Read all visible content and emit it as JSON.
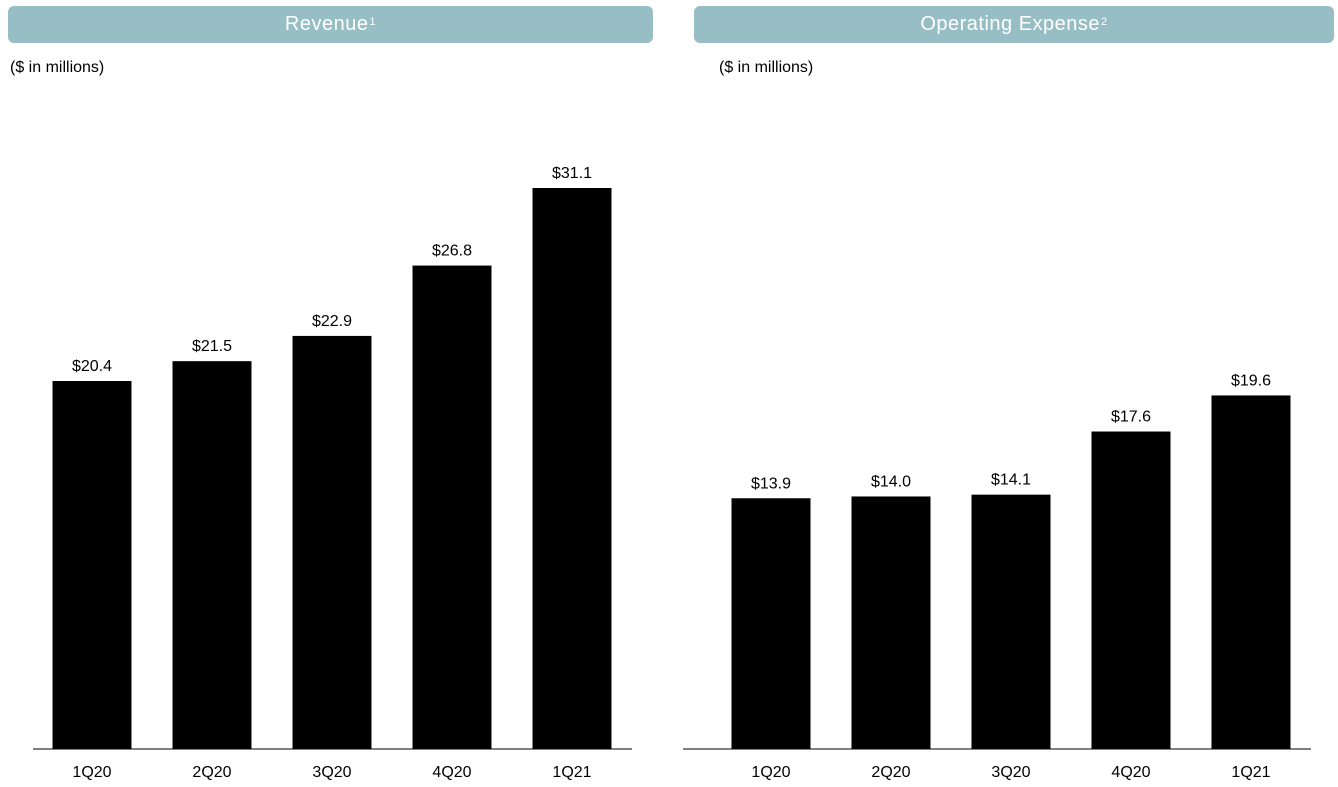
{
  "chart_data": [
    {
      "type": "bar",
      "title": "Revenue",
      "title_superscript": "1",
      "subtitle": "($ in millions)",
      "categories": [
        "1Q20",
        "2Q20",
        "3Q20",
        "4Q20",
        "1Q21"
      ],
      "values": [
        20.4,
        21.5,
        22.9,
        26.8,
        31.1
      ],
      "value_labels": [
        "$20.4",
        "$21.5",
        "$22.9",
        "$26.8",
        "$31.1"
      ],
      "ylim": [
        0,
        31.1
      ],
      "grid": false,
      "bar_color": "#000000",
      "header_color": "#97bec4"
    },
    {
      "type": "bar",
      "title": "Operating Expense",
      "title_superscript": "2",
      "subtitle": "($ in millions)",
      "categories": [
        "1Q20",
        "2Q20",
        "3Q20",
        "4Q20",
        "1Q21"
      ],
      "values": [
        13.9,
        14.0,
        14.1,
        17.6,
        19.6
      ],
      "value_labels": [
        "$13.9",
        "$14.0",
        "$14.1",
        "$17.6",
        "$19.6"
      ],
      "ylim": [
        0,
        31.1
      ],
      "grid": false,
      "bar_color": "#000000",
      "header_color": "#97bec4"
    }
  ]
}
